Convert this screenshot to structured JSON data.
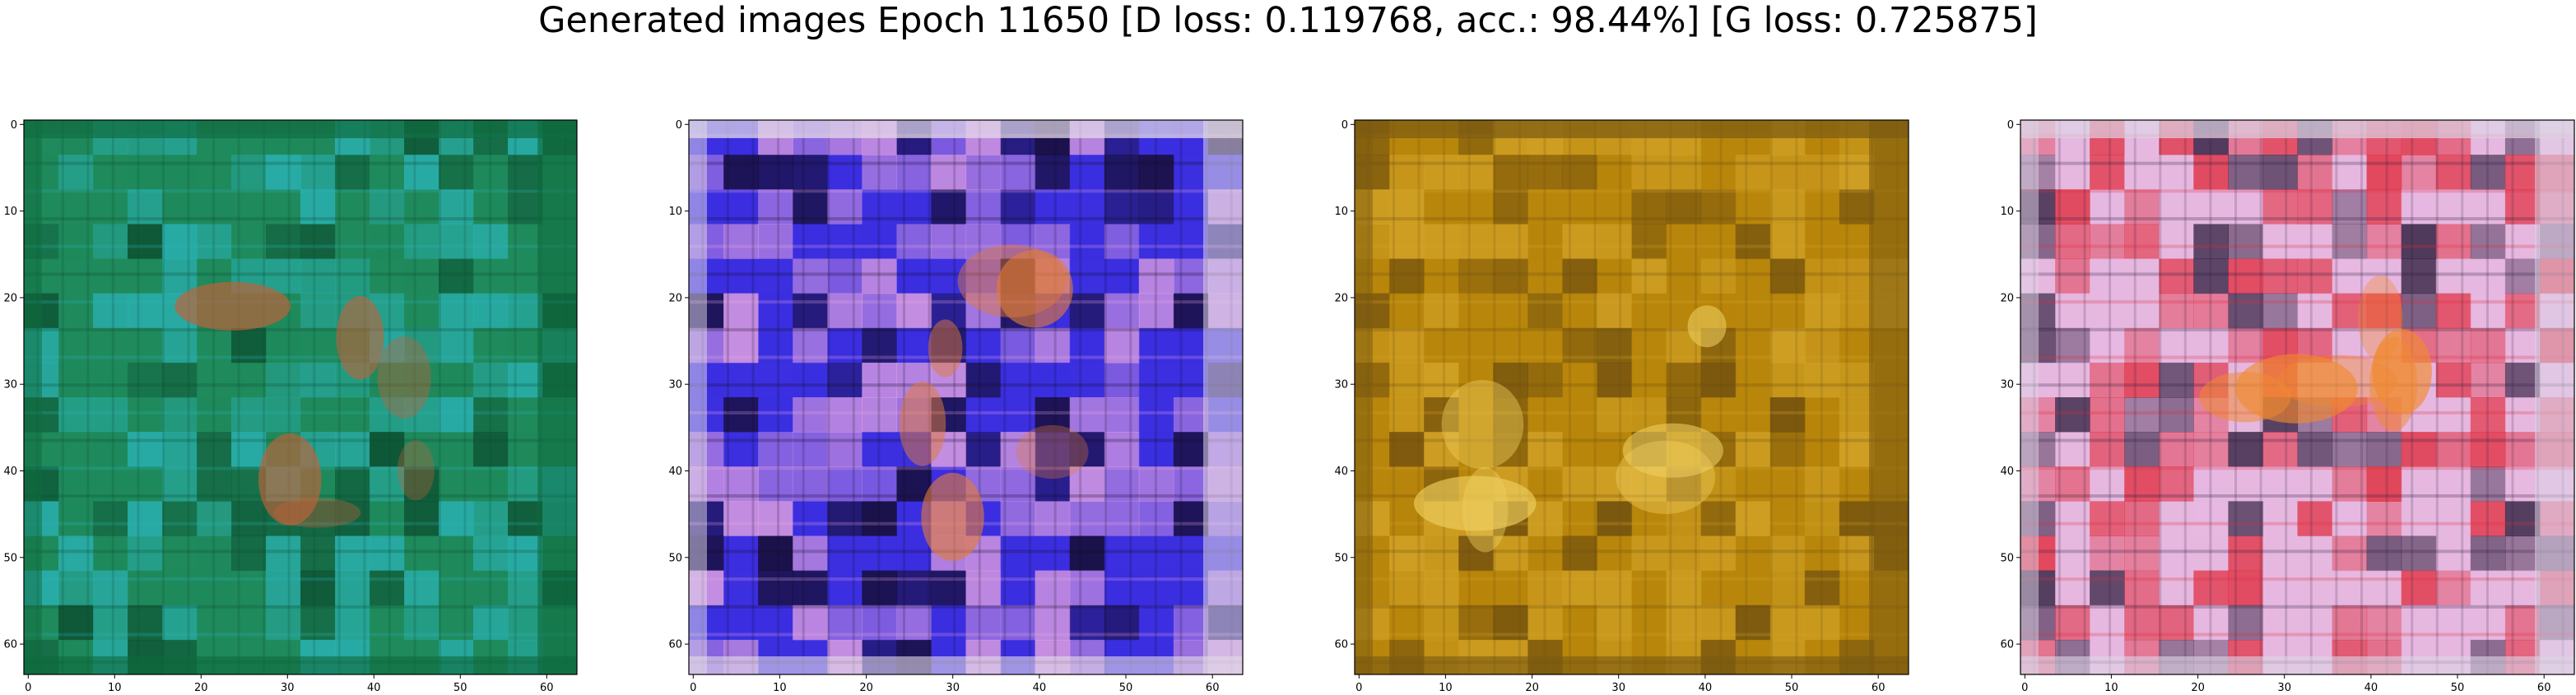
{
  "figure": {
    "suptitle": "Generated images Epoch 11650 [D loss: 0.119768, acc.: 98.44%] [G loss: 0.725875]"
  },
  "chart_data": [
    {
      "type": "heatmap",
      "content": "generated RGB image (64x64)",
      "title": "",
      "xlim": [
        -0.5,
        63.5
      ],
      "ylim": [
        63.5,
        -0.5
      ],
      "xticks": [
        0,
        10,
        20,
        30,
        40,
        50,
        60
      ],
      "yticks": [
        0,
        10,
        20,
        30,
        40,
        50,
        60
      ],
      "grid": false,
      "palette": {
        "base": "#1f8a5c",
        "accent": "#2bb3b8",
        "dark": "#0a4a2e",
        "highlight": "#c0623a",
        "edge": "#0f6b3e"
      }
    },
    {
      "type": "heatmap",
      "content": "generated RGB image (64x64)",
      "title": "",
      "xlim": [
        -0.5,
        63.5
      ],
      "ylim": [
        63.5,
        -0.5
      ],
      "xticks": [
        0,
        10,
        20,
        30,
        40,
        50,
        60
      ],
      "yticks": [
        0,
        10,
        20,
        30,
        40,
        50,
        60
      ],
      "grid": false,
      "palette": {
        "base": "#3b2fe0",
        "accent": "#e8a6e0",
        "dark": "#120a22",
        "highlight": "#e07a3a",
        "edge": "#e4dbe8"
      }
    },
    {
      "type": "heatmap",
      "content": "generated RGB image (64x64)",
      "title": "",
      "xlim": [
        -0.5,
        63.5
      ],
      "ylim": [
        63.5,
        -0.5
      ],
      "xticks": [
        0,
        10,
        20,
        30,
        40,
        50,
        60
      ],
      "yticks": [
        0,
        10,
        20,
        30,
        40,
        50,
        60
      ],
      "grid": false,
      "palette": {
        "base": "#b8860b",
        "accent": "#d4a52a",
        "dark": "#6b4c10",
        "highlight": "#f0d060",
        "edge": "#7a5a12"
      }
    },
    {
      "type": "heatmap",
      "content": "generated RGB image (64x64)",
      "title": "",
      "xlim": [
        -0.5,
        63.5
      ],
      "ylim": [
        63.5,
        -0.5
      ],
      "xticks": [
        0,
        10,
        20,
        30,
        40,
        50,
        60
      ],
      "yticks": [
        0,
        10,
        20,
        30,
        40,
        50,
        60
      ],
      "grid": false,
      "palette": {
        "base": "#e6b8e0",
        "accent": "#e02a3a",
        "dark": "#2a1a3a",
        "highlight": "#f08a30",
        "edge": "#ddd4e6"
      }
    }
  ]
}
